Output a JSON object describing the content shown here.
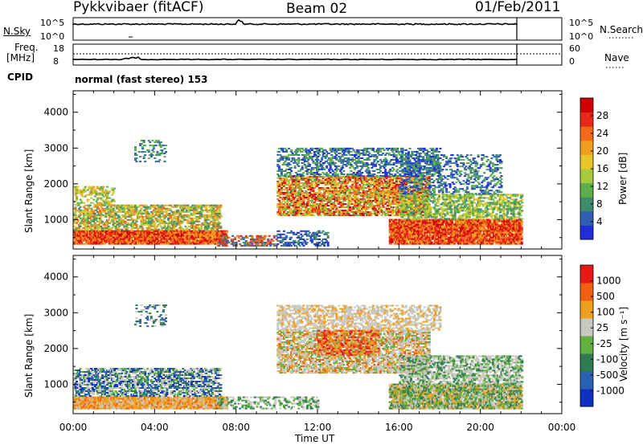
{
  "header": {
    "station": "Pykkvibaer (fitACF)",
    "beam": "Beam 02",
    "date": "01/Feb/2011"
  },
  "noise_panel": {
    "left_label": "N.Sky",
    "left_ticks": [
      "10^5",
      "10^0"
    ],
    "right_label": "N.Search",
    "right_ticks": [
      "10^5",
      "10^0"
    ]
  },
  "freq_panel": {
    "left_label_1": "Freq.",
    "left_label_2": "[MHz]",
    "left_ticks": [
      "18",
      "8"
    ],
    "right_label": "Nave",
    "right_ticks": [
      "60",
      "0"
    ]
  },
  "cpid": {
    "label": "CPID",
    "value": "normal (fast stereo) 153"
  },
  "chart_data": [
    {
      "type": "heatmap",
      "panel": "power",
      "ylabel": "Slant Range [km]",
      "xlabel": "",
      "ylim": [
        180,
        4600
      ],
      "xlim": [
        "00:00",
        "24:00"
      ],
      "yticks": [
        "4000",
        "3000",
        "2000",
        "1000"
      ],
      "colorbar": {
        "label": "Power [dB]",
        "ticks": [
          "28",
          "24",
          "20",
          "16",
          "12",
          "8",
          "4"
        ],
        "colors": [
          "#1f2ed8",
          "#2f5fb0",
          "#3e8a6a",
          "#5cae4a",
          "#a6c93e",
          "#e8c62a",
          "#f0a020",
          "#f06a18",
          "#e82818",
          "#d00000"
        ]
      }
    },
    {
      "type": "heatmap",
      "panel": "velocity",
      "ylabel": "Slant Range [km]",
      "xlabel": "Time UT",
      "ylim": [
        180,
        4600
      ],
      "xlim": [
        "00:00",
        "24:00"
      ],
      "yticks": [
        "4000",
        "3000",
        "2000",
        "1000"
      ],
      "xticks": [
        "00:00",
        "04:00",
        "08:00",
        "12:00",
        "16:00",
        "20:00",
        "00:00"
      ],
      "colorbar": {
        "label": "Velocity [m s⁻¹]",
        "ticks": [
          "1000",
          "500",
          "100",
          "25",
          "-25",
          "-100",
          "-500",
          "-1000"
        ],
        "colors": [
          "#1030c0",
          "#2a60b0",
          "#2f7a50",
          "#60b040",
          "#c8c8c0",
          "#f0a020",
          "#f06010",
          "#e81818"
        ]
      }
    }
  ]
}
